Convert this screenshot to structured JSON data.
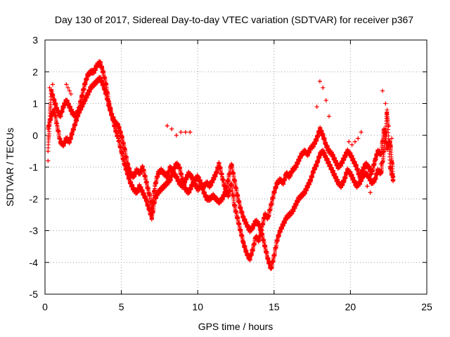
{
  "chart_data": {
    "type": "scatter",
    "title": "Day 130 of 2017, Sidereal Day-to-day VTEC variation (SDTVAR) for receiver p367",
    "xlabel": "GPS time / hours",
    "ylabel": "SDTVAR / TECUs",
    "xlim": [
      0,
      25
    ],
    "ylim": [
      -5,
      3
    ],
    "xticks": [
      0,
      5,
      10,
      15,
      20,
      25
    ],
    "yticks": [
      -5,
      -4,
      -3,
      -2,
      -1,
      0,
      1,
      2,
      3
    ],
    "grid": true,
    "marker": "+",
    "color": "#ff0000",
    "series": [
      {
        "name": "main trace",
        "x": [
          0.2,
          0.4,
          0.6,
          0.8,
          1.0,
          1.2,
          1.4,
          1.6,
          1.8,
          2.0,
          2.2,
          2.4,
          2.6,
          2.8,
          3.0,
          3.2,
          3.4,
          3.6,
          3.8,
          4.0,
          4.2,
          4.4,
          4.6,
          4.8,
          5.0,
          5.2,
          5.4,
          5.6,
          5.8,
          6.0,
          6.2,
          6.4,
          6.6,
          6.8,
          7.0,
          7.2,
          7.4,
          7.6,
          7.8,
          8.0,
          8.2,
          8.4,
          8.6,
          8.8,
          9.0,
          9.2,
          9.4,
          9.6,
          9.8,
          10.0,
          10.2,
          10.4,
          10.6,
          10.8,
          11.0,
          11.2,
          11.4,
          11.6,
          11.8,
          12.0,
          12.2,
          12.4,
          12.6,
          12.8,
          13.0,
          13.2,
          13.4,
          13.6,
          13.8,
          14.0,
          14.2,
          14.4,
          14.6,
          14.8,
          15.0,
          15.2,
          15.4,
          15.6,
          15.8,
          16.0,
          16.2,
          16.4,
          16.6,
          16.8,
          17.0,
          17.2,
          17.4,
          17.6,
          17.8,
          18.0,
          18.2,
          18.4,
          18.6,
          18.8,
          19.0,
          19.2,
          19.4,
          19.6,
          19.8,
          20.0,
          20.2,
          20.4,
          20.6,
          20.8,
          21.0,
          21.2,
          21.4,
          21.6,
          21.8,
          22.0,
          22.2,
          22.4,
          22.6,
          22.8
        ],
        "y": [
          -0.5,
          1.4,
          1.1,
          0.8,
          0.6,
          0.9,
          1.1,
          0.9,
          0.7,
          0.6,
          0.8,
          1.2,
          1.6,
          1.9,
          2.0,
          2.0,
          2.2,
          2.3,
          2.0,
          1.6,
          1.0,
          0.6,
          0.4,
          0.3,
          0.0,
          -0.4,
          -0.9,
          -1.2,
          -1.3,
          -1.1,
          -1.2,
          -1.0,
          -1.4,
          -1.8,
          -2.3,
          -1.6,
          -1.2,
          -1.1,
          -1.2,
          -1.3,
          -1.0,
          -1.2,
          -1.3,
          -1.5,
          -1.6,
          -1.4,
          -1.2,
          -1.3,
          -1.5,
          -1.7,
          -1.6,
          -1.6,
          -1.5,
          -1.6,
          -1.4,
          -1.2,
          -0.9,
          -1.3,
          -1.7,
          -1.9,
          -1.5,
          -2.2,
          -2.6,
          -3.0,
          -3.4,
          -3.7,
          -3.9,
          -3.6,
          -3.2,
          -3.3,
          -2.9,
          -2.5,
          -2.6,
          -2.2,
          -1.8,
          -1.5,
          -1.4,
          -1.5,
          -1.2,
          -1.3,
          -1.1,
          -1.0,
          -0.8,
          -0.6,
          -0.5,
          -0.6,
          -0.4,
          -0.3,
          -0.1,
          0.2,
          0.0,
          -0.3,
          -0.5,
          -0.6,
          -0.8,
          -1.0,
          -0.9,
          -0.7,
          -0.5,
          -0.6,
          -0.8,
          -1.0,
          -1.3,
          -1.1,
          -0.9,
          -1.0,
          -1.2,
          -0.8,
          -0.5,
          -0.6,
          0.2,
          -0.4,
          -0.2,
          -1.3
        ]
      },
      {
        "name": "secondary trace",
        "x": [
          0.2,
          0.4,
          0.6,
          0.8,
          1.0,
          1.2,
          1.4,
          1.6,
          1.8,
          2.0,
          2.2,
          2.4,
          2.6,
          2.8,
          3.0,
          3.2,
          3.4,
          3.6,
          3.8,
          4.0,
          4.2,
          4.4,
          4.6,
          4.8,
          5.0,
          5.2,
          5.4,
          5.6,
          5.8,
          6.0,
          6.2,
          6.4,
          6.6,
          6.8,
          7.0,
          7.2,
          7.4,
          7.6,
          7.8,
          8.0,
          8.2,
          8.4,
          8.6,
          8.8,
          9.0,
          9.2,
          9.4,
          9.6,
          9.8,
          10.0,
          10.2,
          10.4,
          10.6,
          10.8,
          11.0,
          11.2,
          11.4,
          11.6,
          11.8,
          12.0,
          12.2,
          12.4,
          12.6,
          12.8,
          13.0,
          13.2,
          13.4,
          13.6,
          13.8,
          14.0,
          14.2,
          14.4,
          14.6,
          14.8,
          15.0,
          15.2,
          15.4,
          15.6,
          15.8,
          16.0,
          16.2,
          16.4,
          16.6,
          16.8,
          17.0,
          17.2,
          17.4,
          17.6,
          17.8,
          18.0,
          18.2,
          18.4,
          18.6,
          18.8,
          19.0,
          19.2,
          19.4,
          19.6,
          19.8,
          20.0,
          20.2,
          20.4,
          20.6,
          20.8,
          21.0,
          21.2,
          21.4,
          21.6,
          21.8,
          22.0,
          22.2,
          22.4,
          22.6,
          22.8
        ],
        "y": [
          0.2,
          0.6,
          0.8,
          0.3,
          -0.2,
          -0.3,
          -0.1,
          -0.2,
          0.1,
          0.4,
          0.7,
          0.9,
          1.1,
          1.3,
          1.5,
          1.6,
          1.7,
          1.8,
          1.6,
          1.3,
          0.9,
          0.6,
          0.2,
          -0.1,
          -0.5,
          -0.9,
          -1.2,
          -1.5,
          -1.7,
          -1.8,
          -1.6,
          -1.8,
          -2.0,
          -2.3,
          -2.6,
          -2.0,
          -1.8,
          -1.7,
          -1.6,
          -1.5,
          -1.4,
          -1.1,
          -0.9,
          -1.0,
          -1.4,
          -1.7,
          -1.8,
          -1.6,
          -1.4,
          -1.3,
          -1.5,
          -1.8,
          -2.0,
          -2.0,
          -1.9,
          -2.0,
          -2.1,
          -2.0,
          -1.8,
          -1.4,
          -0.9,
          -1.4,
          -1.9,
          -2.3,
          -2.6,
          -2.8,
          -3.0,
          -2.9,
          -2.7,
          -2.8,
          -3.1,
          -3.5,
          -3.9,
          -4.2,
          -3.8,
          -3.3,
          -3.0,
          -2.8,
          -2.6,
          -2.5,
          -2.4,
          -2.2,
          -2.0,
          -1.9,
          -1.8,
          -1.6,
          -1.4,
          -1.1,
          -0.9,
          -0.6,
          -0.5,
          -0.7,
          -0.9,
          -1.1,
          -1.3,
          -1.5,
          -1.6,
          -1.4,
          -1.1,
          -1.2,
          -1.4,
          -1.6,
          -1.5,
          -1.3,
          -1.2,
          -1.3,
          -1.5,
          -1.4,
          -1.1,
          -1.2,
          -0.5,
          0.8,
          -1.0,
          -1.4
        ]
      },
      {
        "name": "isolated segments",
        "x": [
          0.2,
          0.3,
          0.5,
          1.4,
          1.5,
          1.6,
          1.7,
          8.0,
          8.3,
          8.6,
          8.9,
          9.2,
          9.5,
          17.8,
          18.0,
          18.2,
          18.4,
          18.6,
          19.9,
          20.1,
          20.3,
          20.5,
          20.7,
          21.1,
          21.3,
          22.0,
          22.1,
          22.3,
          22.5,
          22.7
        ],
        "y": [
          -0.8,
          1.5,
          1.6,
          1.6,
          1.5,
          1.4,
          1.3,
          0.3,
          0.2,
          0.0,
          0.1,
          0.1,
          0.1,
          0.9,
          1.7,
          1.5,
          1.1,
          0.6,
          -0.2,
          -0.3,
          -0.2,
          -0.1,
          0.1,
          -1.6,
          -1.8,
          -0.9,
          1.4,
          1.0,
          0.3,
          -0.1
        ]
      }
    ]
  }
}
